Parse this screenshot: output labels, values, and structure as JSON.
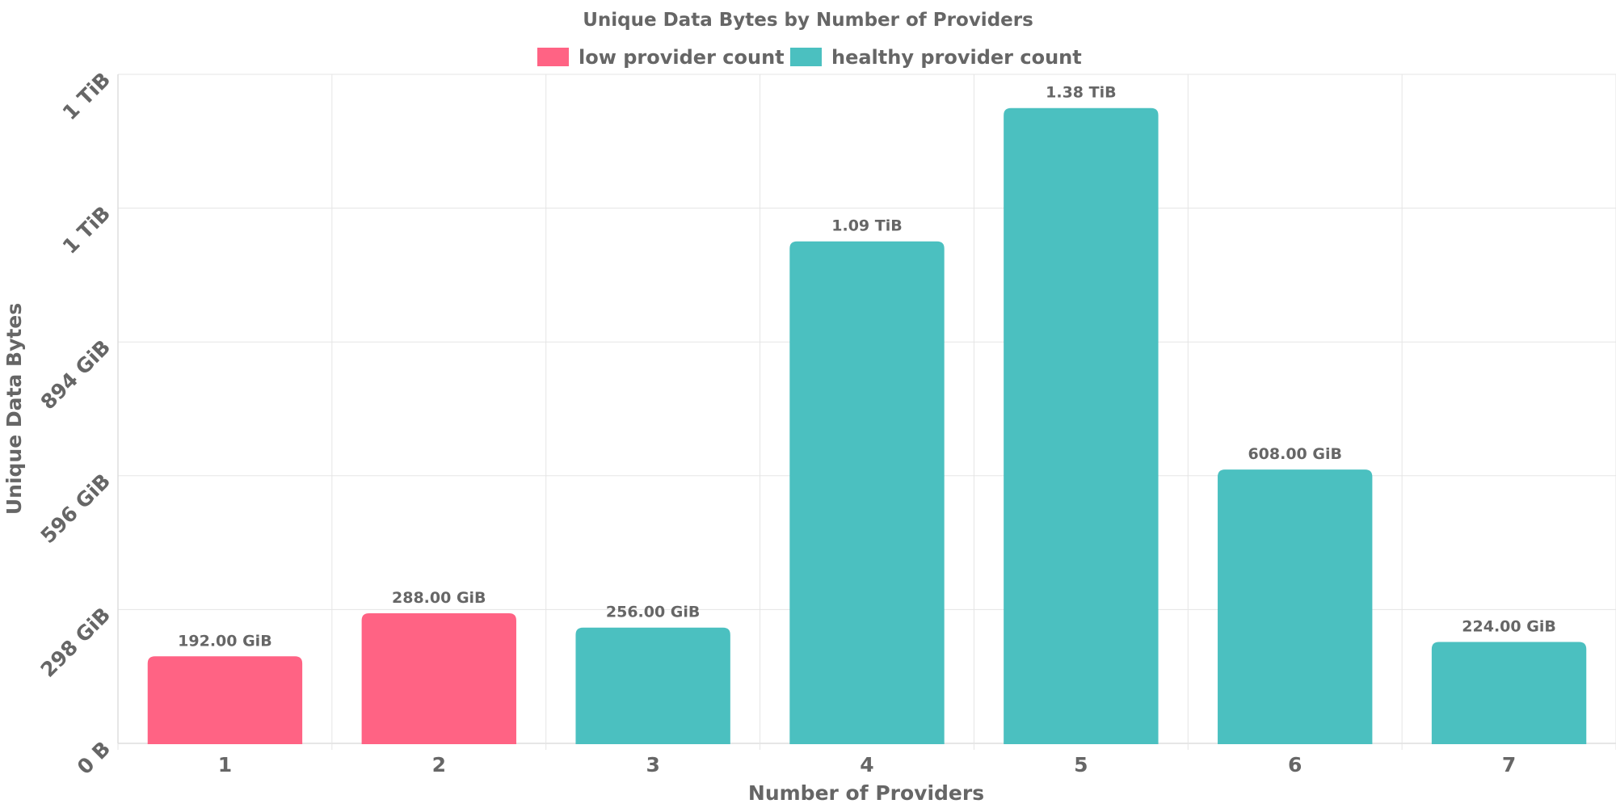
{
  "chart_data": {
    "type": "bar",
    "title": "Unique Data Bytes by Number of Providers",
    "xlabel": "Number of Providers",
    "ylabel": "Unique Data Bytes",
    "categories": [
      "1",
      "2",
      "3",
      "4",
      "5",
      "6",
      "7"
    ],
    "values_gib": [
      192,
      288,
      256,
      1116.16,
      1413.12,
      608,
      224
    ],
    "data_labels": [
      "192.00 GiB",
      "288.00 GiB",
      "256.00 GiB",
      "1.09 TiB",
      "1.38 TiB",
      "608.00 GiB",
      "224.00 GiB"
    ],
    "bar_series": [
      "low provider count",
      "low provider count",
      "healthy provider count",
      "healthy provider count",
      "healthy provider count",
      "healthy provider count",
      "healthy provider count"
    ],
    "legend": [
      {
        "name": "low provider count",
        "color": "#ff6384"
      },
      {
        "name": "healthy provider count",
        "color": "#4bc0c0"
      }
    ],
    "legend_position": "top-center",
    "y_ticks": [
      {
        "value_gib": 0,
        "label": "0 B"
      },
      {
        "value_gib": 298,
        "label": "298 GiB"
      },
      {
        "value_gib": 596,
        "label": "596 GiB"
      },
      {
        "value_gib": 894,
        "label": "894 GiB"
      },
      {
        "value_gib": 1192,
        "label": "1 TiB"
      },
      {
        "value_gib": 1490,
        "label": "1 TiB"
      }
    ],
    "ylim_gib": [
      0,
      1490
    ],
    "grid": true
  }
}
